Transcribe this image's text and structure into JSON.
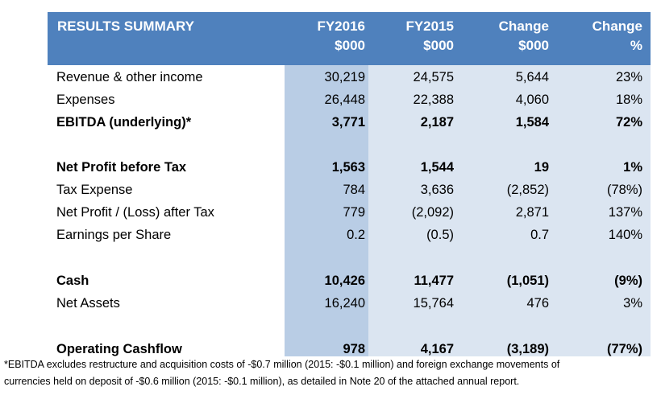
{
  "header": {
    "title": "RESULTS SUMMARY",
    "columns": [
      {
        "line1": "FY2016",
        "line2": "$000"
      },
      {
        "line1": "FY2015",
        "line2": "$000"
      },
      {
        "line1": "Change",
        "line2": "$000"
      },
      {
        "line1": "Change",
        "line2": "%"
      }
    ]
  },
  "rows": [
    {
      "label": "Revenue & other income",
      "fy2016": "30,219",
      "fy2015": "24,575",
      "change": "5,644",
      "pct": "23%",
      "bold": false
    },
    {
      "label": "Expenses",
      "fy2016": "26,448",
      "fy2015": "22,388",
      "change": "4,060",
      "pct": "18%",
      "bold": false
    },
    {
      "label": "EBITDA (underlying)*",
      "fy2016": "3,771",
      "fy2015": "2,187",
      "change": "1,584",
      "pct": "72%",
      "bold": true
    },
    {
      "label": "Net Profit before Tax",
      "fy2016": "1,563",
      "fy2015": "1,544",
      "change": "19",
      "pct": "1%",
      "bold": true
    },
    {
      "label": "Tax Expense",
      "fy2016": "784",
      "fy2015": "3,636",
      "change": "(2,852)",
      "pct": "(78%)",
      "bold": false
    },
    {
      "label": "Net Profit / (Loss) after Tax",
      "fy2016": "779",
      "fy2015": "(2,092)",
      "change": "2,871",
      "pct": "137%",
      "bold": false
    },
    {
      "label": "Earnings per Share",
      "fy2016": "0.2",
      "fy2015": "(0.5)",
      "change": "0.7",
      "pct": "140%",
      "bold": false
    },
    {
      "label": "Cash",
      "fy2016": "10,426",
      "fy2015": "11,477",
      "change": "(1,051)",
      "pct": "(9%)",
      "bold": true
    },
    {
      "label": "Net Assets",
      "fy2016": "16,240",
      "fy2015": "15,764",
      "change": "476",
      "pct": "3%",
      "bold": false
    },
    {
      "label": "Operating Cashflow",
      "fy2016": "978",
      "fy2015": "4,167",
      "change": "(3,189)",
      "pct": "(77%)",
      "bold": true
    }
  ],
  "footnote": {
    "line1": "*EBITDA excludes restructure and acquisition costs of -$0.7 million (2015: -$0.1 million) and foreign exchange movements of",
    "line2": "currencies held on deposit of -$0.6 million (2015: -$0.1 million), as detailed in Note 20 of the attached annual report."
  },
  "colors": {
    "header_bg": "#4f81bd",
    "fy2016_band": "#b9cde5",
    "other_band": "#dbe5f1"
  }
}
